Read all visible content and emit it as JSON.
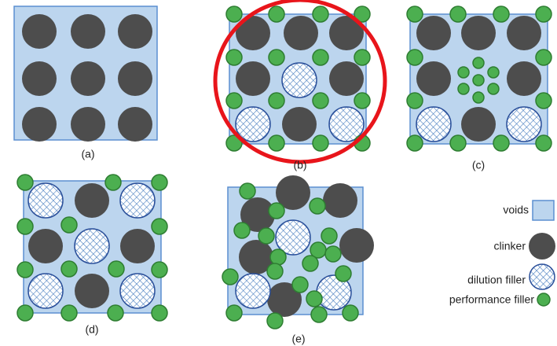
{
  "panels": [
    {
      "label": "(a)"
    },
    {
      "label": "(b)"
    },
    {
      "label": "(c)"
    },
    {
      "label": "(d)"
    },
    {
      "label": "(e)"
    }
  ],
  "legend": [
    {
      "label": "voids"
    },
    {
      "label": "clinker"
    },
    {
      "label": "dilution filler"
    },
    {
      "label": "performance filler"
    }
  ]
}
